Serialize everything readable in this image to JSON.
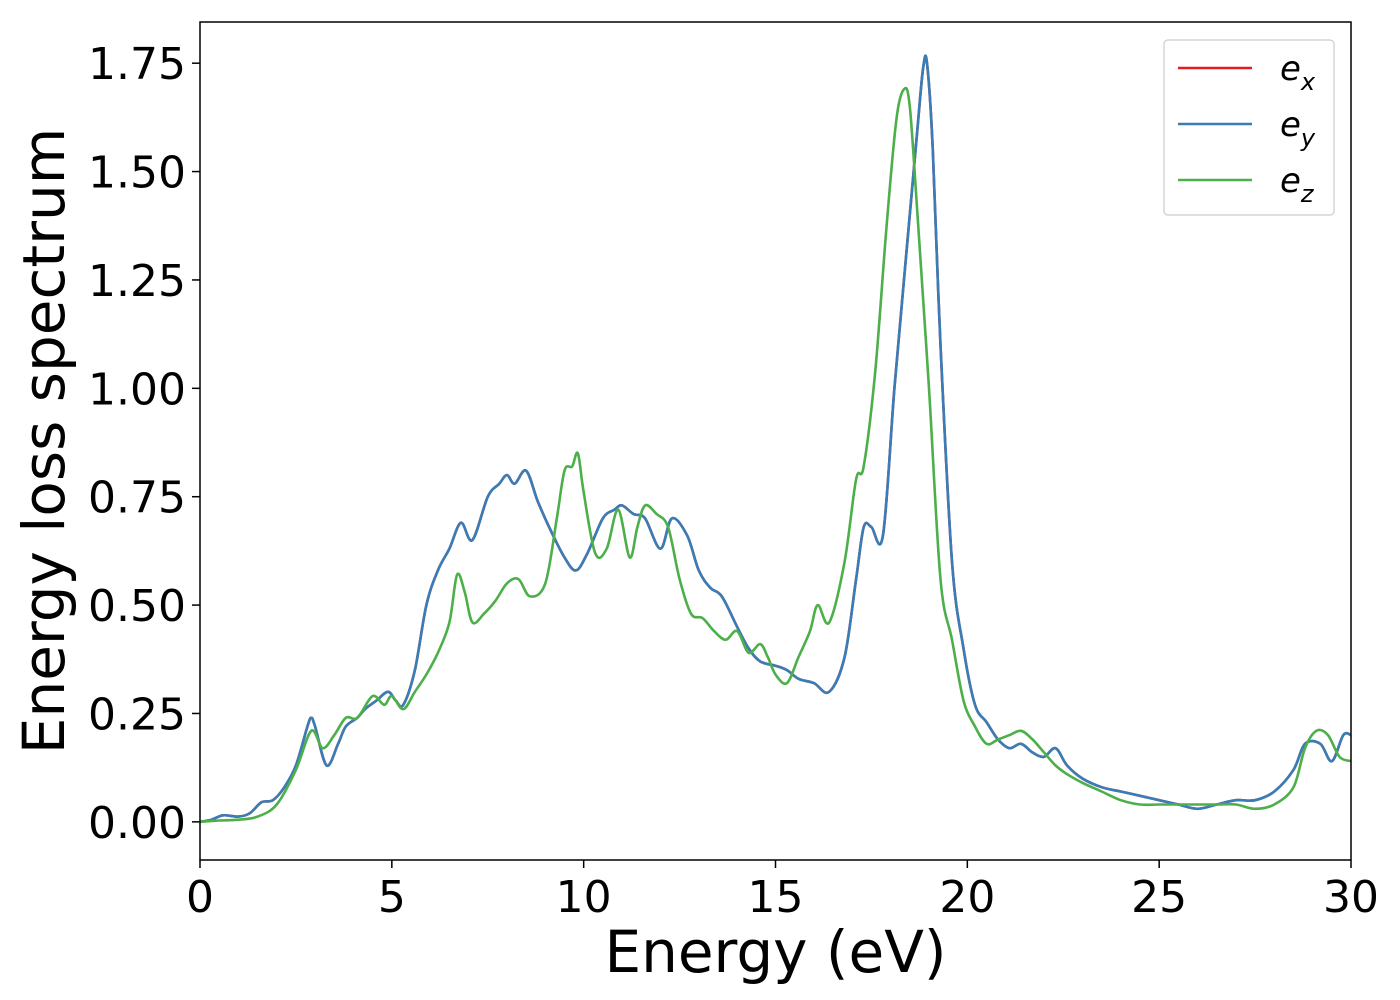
{
  "chart_data": {
    "type": "line",
    "xlabel": "Energy (eV)",
    "ylabel": "Energy loss spectrum",
    "xlim": [
      0,
      30
    ],
    "ylim": [
      -0.088,
      1.845
    ],
    "xticks": [
      0,
      5,
      10,
      15,
      20,
      25,
      30
    ],
    "xtick_labels": [
      "0",
      "5",
      "10",
      "15",
      "20",
      "25",
      "30"
    ],
    "yticks": [
      0,
      0.25,
      0.5,
      0.75,
      1.0,
      1.25,
      1.5,
      1.75
    ],
    "ytick_labels": [
      "0.00",
      "0.25",
      "0.50",
      "0.75",
      "1.00",
      "1.25",
      "1.50",
      "1.75"
    ],
    "grid": false,
    "legend_position": "top-right",
    "series": [
      {
        "name": "e_x",
        "base": "e",
        "sub": "x",
        "color": "#e41a1c",
        "x": [
          0,
          0.3,
          0.6,
          1.0,
          1.3,
          1.6,
          1.9,
          2.2,
          2.5,
          2.8,
          2.9,
          3.0,
          3.3,
          3.6,
          3.8,
          4.1,
          4.3,
          4.6,
          4.9,
          5.1,
          5.3,
          5.6,
          5.9,
          6.2,
          6.5,
          6.8,
          7.1,
          7.5,
          7.8,
          8.0,
          8.2,
          8.5,
          8.8,
          9.1,
          9.5,
          9.8,
          10.1,
          10.5,
          10.8,
          11.0,
          11.3,
          11.6,
          12.0,
          12.3,
          12.7,
          13.0,
          13.3,
          13.6,
          14.0,
          14.3,
          14.6,
          15.0,
          15.3,
          15.6,
          16.0,
          16.4,
          16.8,
          17.1,
          17.3,
          17.5,
          17.8,
          18.1,
          18.4,
          18.7,
          18.85,
          18.95,
          19.1,
          19.3,
          19.6,
          19.9,
          20.2,
          20.5,
          20.8,
          21.1,
          21.4,
          21.7,
          22.0,
          22.3,
          22.6,
          23.0,
          23.5,
          24.0,
          24.5,
          25.0,
          25.5,
          26.0,
          26.5,
          27.0,
          27.5,
          28.0,
          28.5,
          28.8,
          29.2,
          29.5,
          29.8,
          30.0
        ],
        "y": [
          0.0,
          0.005,
          0.015,
          0.012,
          0.02,
          0.045,
          0.05,
          0.08,
          0.13,
          0.22,
          0.24,
          0.22,
          0.13,
          0.18,
          0.22,
          0.24,
          0.26,
          0.28,
          0.3,
          0.28,
          0.27,
          0.35,
          0.5,
          0.58,
          0.63,
          0.69,
          0.65,
          0.75,
          0.78,
          0.8,
          0.78,
          0.81,
          0.74,
          0.68,
          0.61,
          0.58,
          0.62,
          0.7,
          0.72,
          0.73,
          0.71,
          0.7,
          0.63,
          0.7,
          0.66,
          0.58,
          0.54,
          0.52,
          0.45,
          0.4,
          0.37,
          0.36,
          0.35,
          0.33,
          0.32,
          0.3,
          0.38,
          0.56,
          0.68,
          0.68,
          0.66,
          1.0,
          1.3,
          1.6,
          1.74,
          1.75,
          1.55,
          1.1,
          0.6,
          0.4,
          0.27,
          0.23,
          0.19,
          0.17,
          0.18,
          0.16,
          0.15,
          0.17,
          0.13,
          0.1,
          0.08,
          0.07,
          0.06,
          0.05,
          0.04,
          0.03,
          0.04,
          0.05,
          0.05,
          0.07,
          0.12,
          0.18,
          0.18,
          0.14,
          0.2,
          0.2
        ]
      },
      {
        "name": "e_y",
        "base": "e",
        "sub": "y",
        "color": "#377eb8",
        "x": [
          0,
          0.3,
          0.6,
          1.0,
          1.3,
          1.6,
          1.9,
          2.2,
          2.5,
          2.8,
          2.9,
          3.0,
          3.3,
          3.6,
          3.8,
          4.1,
          4.3,
          4.6,
          4.9,
          5.1,
          5.3,
          5.6,
          5.9,
          6.2,
          6.5,
          6.8,
          7.1,
          7.5,
          7.8,
          8.0,
          8.2,
          8.5,
          8.8,
          9.1,
          9.5,
          9.8,
          10.1,
          10.5,
          10.8,
          11.0,
          11.3,
          11.6,
          12.0,
          12.3,
          12.7,
          13.0,
          13.3,
          13.6,
          14.0,
          14.3,
          14.6,
          15.0,
          15.3,
          15.6,
          16.0,
          16.4,
          16.8,
          17.1,
          17.3,
          17.5,
          17.8,
          18.1,
          18.4,
          18.7,
          18.85,
          18.95,
          19.1,
          19.3,
          19.6,
          19.9,
          20.2,
          20.5,
          20.8,
          21.1,
          21.4,
          21.7,
          22.0,
          22.3,
          22.6,
          23.0,
          23.5,
          24.0,
          24.5,
          25.0,
          25.5,
          26.0,
          26.5,
          27.0,
          27.5,
          28.0,
          28.5,
          28.8,
          29.2,
          29.5,
          29.8,
          30.0
        ],
        "y": [
          0.0,
          0.005,
          0.015,
          0.012,
          0.02,
          0.045,
          0.05,
          0.08,
          0.13,
          0.22,
          0.24,
          0.22,
          0.13,
          0.18,
          0.22,
          0.24,
          0.26,
          0.28,
          0.3,
          0.28,
          0.27,
          0.35,
          0.5,
          0.58,
          0.63,
          0.69,
          0.65,
          0.75,
          0.78,
          0.8,
          0.78,
          0.81,
          0.74,
          0.68,
          0.61,
          0.58,
          0.62,
          0.7,
          0.72,
          0.73,
          0.71,
          0.7,
          0.63,
          0.7,
          0.66,
          0.58,
          0.54,
          0.52,
          0.45,
          0.4,
          0.37,
          0.36,
          0.35,
          0.33,
          0.32,
          0.3,
          0.38,
          0.56,
          0.68,
          0.68,
          0.66,
          1.0,
          1.3,
          1.6,
          1.74,
          1.75,
          1.55,
          1.1,
          0.6,
          0.4,
          0.27,
          0.23,
          0.19,
          0.17,
          0.18,
          0.16,
          0.15,
          0.17,
          0.13,
          0.1,
          0.08,
          0.07,
          0.06,
          0.05,
          0.04,
          0.03,
          0.04,
          0.05,
          0.05,
          0.07,
          0.12,
          0.18,
          0.18,
          0.14,
          0.2,
          0.2
        ]
      },
      {
        "name": "e_z",
        "base": "e",
        "sub": "z",
        "color": "#4daf4a",
        "x": [
          0,
          0.5,
          1.0,
          1.5,
          2.0,
          2.5,
          2.9,
          3.2,
          3.5,
          3.8,
          4.1,
          4.5,
          4.8,
          5.0,
          5.3,
          5.6,
          5.9,
          6.2,
          6.5,
          6.7,
          6.9,
          7.1,
          7.4,
          7.7,
          8.0,
          8.3,
          8.6,
          9.0,
          9.3,
          9.5,
          9.7,
          9.85,
          10.0,
          10.3,
          10.6,
          10.9,
          11.2,
          11.4,
          11.6,
          11.9,
          12.2,
          12.5,
          12.8,
          13.1,
          13.4,
          13.7,
          14.0,
          14.3,
          14.6,
          14.8,
          15.0,
          15.3,
          15.6,
          15.9,
          16.1,
          16.4,
          16.8,
          17.1,
          17.3,
          17.6,
          17.9,
          18.15,
          18.35,
          18.5,
          18.7,
          19.0,
          19.3,
          19.6,
          19.9,
          20.2,
          20.5,
          20.8,
          21.1,
          21.4,
          21.7,
          22.0,
          22.3,
          22.6,
          23.0,
          23.5,
          24.0,
          24.5,
          25.0,
          25.5,
          26.0,
          26.5,
          27.0,
          27.5,
          28.0,
          28.5,
          28.8,
          29.1,
          29.4,
          29.7,
          30.0
        ],
        "y": [
          0.0,
          0.003,
          0.005,
          0.012,
          0.04,
          0.12,
          0.21,
          0.17,
          0.2,
          0.24,
          0.24,
          0.29,
          0.27,
          0.29,
          0.26,
          0.3,
          0.34,
          0.39,
          0.46,
          0.57,
          0.53,
          0.46,
          0.48,
          0.51,
          0.55,
          0.56,
          0.52,
          0.55,
          0.7,
          0.81,
          0.82,
          0.85,
          0.76,
          0.62,
          0.63,
          0.72,
          0.61,
          0.68,
          0.73,
          0.71,
          0.68,
          0.56,
          0.48,
          0.47,
          0.44,
          0.42,
          0.44,
          0.39,
          0.41,
          0.38,
          0.34,
          0.32,
          0.38,
          0.44,
          0.5,
          0.46,
          0.6,
          0.79,
          0.82,
          1.04,
          1.38,
          1.62,
          1.69,
          1.65,
          1.4,
          1.0,
          0.56,
          0.42,
          0.28,
          0.22,
          0.18,
          0.19,
          0.2,
          0.21,
          0.19,
          0.16,
          0.13,
          0.11,
          0.09,
          0.07,
          0.05,
          0.04,
          0.04,
          0.04,
          0.04,
          0.04,
          0.04,
          0.03,
          0.04,
          0.08,
          0.17,
          0.21,
          0.2,
          0.15,
          0.14
        ]
      }
    ]
  }
}
